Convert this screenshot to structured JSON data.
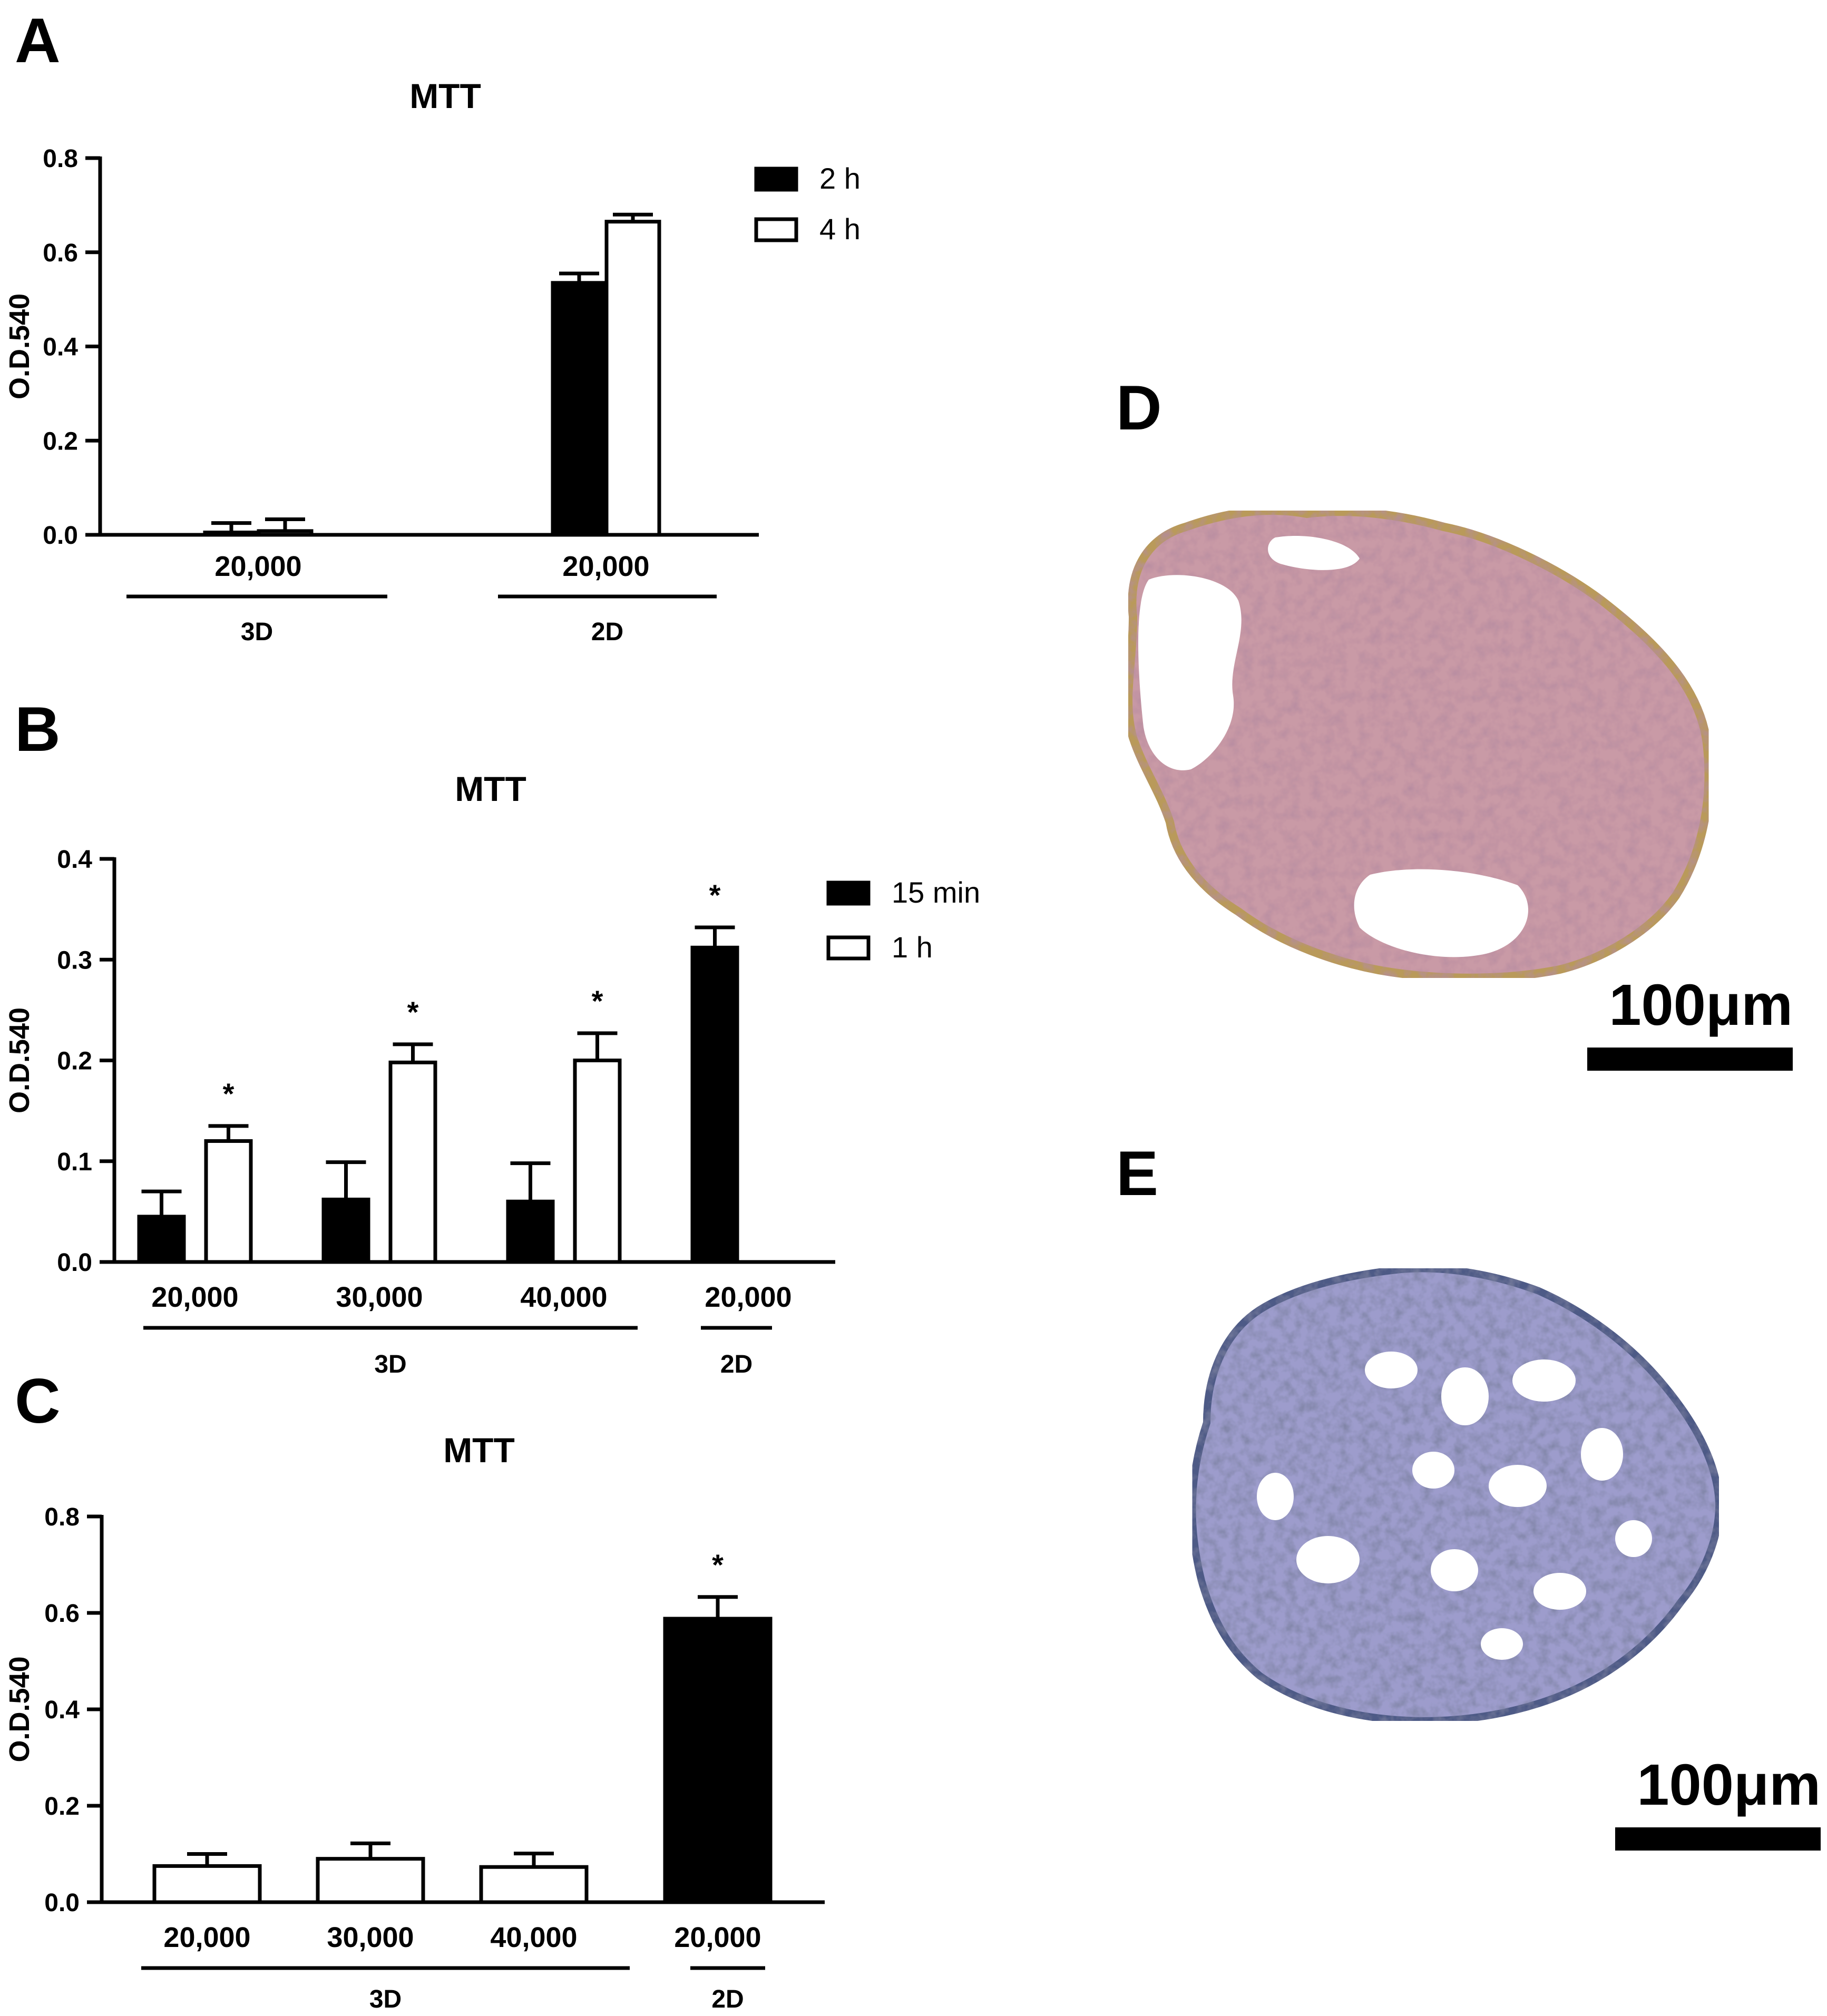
{
  "panels": {
    "A": "A",
    "B": "B",
    "C": "C",
    "D": "D",
    "E": "E"
  },
  "chart_data": [
    {
      "id": "A",
      "type": "bar",
      "title": "MTT",
      "ylabel": "O.D.540",
      "ylim": [
        0,
        0.8
      ],
      "yticks": [
        0,
        0.2,
        0.4,
        0.6,
        0.8
      ],
      "ytick_labels": [
        "0.0",
        "0.2",
        "0.4",
        "0.6",
        "0.8"
      ],
      "categories": [
        "20,000",
        "20,000"
      ],
      "groups": [
        {
          "label": "3D",
          "categories": [
            0
          ]
        },
        {
          "label": "2D",
          "categories": [
            1
          ]
        }
      ],
      "series": [
        {
          "name": "2 h",
          "fill": "#000000",
          "values": [
            0.005,
            0.535
          ],
          "errors": [
            0.02,
            0.02
          ],
          "stars": [
            false,
            false
          ]
        },
        {
          "name": "4 h",
          "fill": "#ffffff",
          "values": [
            0.008,
            0.665
          ],
          "errors": [
            0.025,
            0.015
          ],
          "stars": [
            false,
            false
          ]
        }
      ],
      "legend": "top-right"
    },
    {
      "id": "B",
      "type": "bar",
      "title": "MTT",
      "ylabel": "O.D.540",
      "ylim": [
        0,
        0.4
      ],
      "yticks": [
        0,
        0.1,
        0.2,
        0.3,
        0.4
      ],
      "ytick_labels": [
        "0.0",
        "0.1",
        "0.2",
        "0.3",
        "0.4"
      ],
      "categories": [
        "20,000",
        "30,000",
        "40,000",
        "20,000"
      ],
      "groups": [
        {
          "label": "3D",
          "categories": [
            0,
            1,
            2
          ]
        },
        {
          "label": "2D",
          "categories": [
            3
          ]
        }
      ],
      "series": [
        {
          "name": "15 min",
          "fill": "#000000",
          "values": [
            0.045,
            0.062,
            0.06,
            0.312
          ],
          "errors": [
            0.025,
            0.037,
            0.038,
            0.02
          ],
          "stars": [
            false,
            false,
            false,
            true
          ]
        },
        {
          "name": "1 h",
          "fill": "#ffffff",
          "values": [
            0.12,
            0.198,
            0.2,
            null
          ],
          "errors": [
            0.015,
            0.018,
            0.027,
            null
          ],
          "stars": [
            true,
            true,
            true,
            false
          ]
        }
      ],
      "legend": "top-right"
    },
    {
      "id": "C",
      "type": "bar",
      "title": "MTT",
      "ylabel": "O.D.540",
      "ylim": [
        0,
        0.8
      ],
      "yticks": [
        0,
        0.2,
        0.4,
        0.6,
        0.8
      ],
      "ytick_labels": [
        "0.0",
        "0.2",
        "0.4",
        "0.6",
        "0.8"
      ],
      "categories": [
        "20,000",
        "30,000",
        "40,000",
        "20,000"
      ],
      "groups": [
        {
          "label": "3D",
          "categories": [
            0,
            1,
            2
          ]
        },
        {
          "label": "2D",
          "categories": [
            3
          ]
        }
      ],
      "series": [
        {
          "name": "",
          "values": [
            0.075,
            0.09,
            0.073,
            0.588
          ],
          "errors": [
            0.025,
            0.032,
            0.028,
            0.045
          ],
          "fills": [
            "#ffffff",
            "#ffffff",
            "#ffffff",
            "#000000"
          ],
          "stars": [
            false,
            false,
            false,
            true
          ]
        }
      ],
      "legend": "none"
    }
  ],
  "micrographs": {
    "D": {
      "stain_color": "#c99aa6",
      "edge_color": "#b99a5a",
      "scale_label": "100μm"
    },
    "E": {
      "stain_color": "#9d9ccc",
      "edge_color": "#4e5a86",
      "scale_label": "100μm"
    }
  }
}
